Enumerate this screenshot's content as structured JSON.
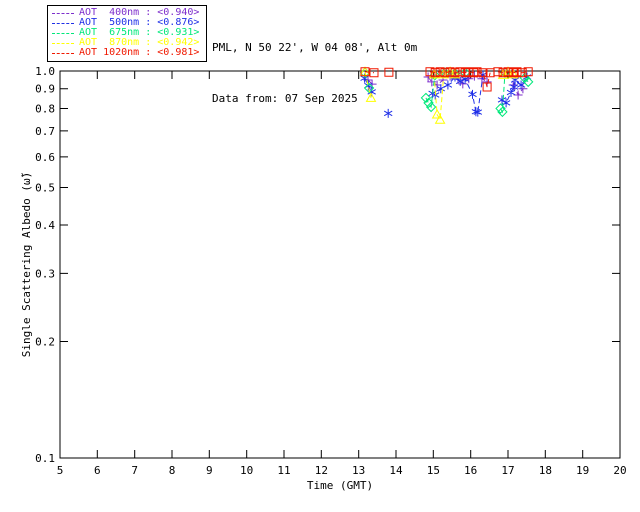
{
  "header": {
    "site_line": "PML, N 50 22', W 04 08', Alt 0m",
    "date_line": "Data from: 07 Sep 2025"
  },
  "chart_data": {
    "type": "line",
    "title": "",
    "xlabel": "Time (GMT)",
    "ylabel": "Single Scattering Albedo (ω̃)",
    "xlim": [
      5,
      20
    ],
    "ylim": [
      0.1,
      1.0
    ],
    "yscale": "log",
    "grid": false,
    "legend_position": "top-left",
    "x_ticks": [
      5,
      6,
      7,
      8,
      9,
      10,
      11,
      12,
      13,
      14,
      15,
      16,
      17,
      18,
      19,
      20
    ],
    "y_ticks": [
      1.0,
      0.9,
      0.8,
      0.7,
      0.6,
      0.5,
      0.4,
      0.3,
      0.2,
      0.1
    ],
    "series": [
      {
        "name": "AOT 400nm",
        "legend_label": "AOT  400nm : <0.940>",
        "mean": "<0.940>",
        "color": "#7D2FCC",
        "marker": "plus",
        "linestyle": "dashed",
        "segments": [
          [
            [
              13.25,
              0.948
            ],
            [
              13.36,
              0.925
            ]
          ],
          [
            [
              14.86,
              0.965
            ],
            [
              14.96,
              0.937
            ],
            [
              15.1,
              0.92
            ],
            [
              15.26,
              0.948
            ],
            [
              15.45,
              0.97
            ],
            [
              15.66,
              0.953
            ],
            [
              15.79,
              0.926
            ],
            [
              15.95,
              0.955
            ],
            [
              16.1,
              0.97
            ],
            [
              16.3,
              0.955
            ],
            [
              16.44,
              0.937
            ]
          ],
          [
            [
              17.14,
              0.92
            ],
            [
              17.27,
              0.867
            ],
            [
              17.4,
              0.9
            ]
          ]
        ]
      },
      {
        "name": "AOT 500nm",
        "legend_label": "AOT  500nm : <0.876>",
        "mean": "<0.876>",
        "color": "#1F2FE8",
        "marker": "asterisk",
        "linestyle": "dashed",
        "segments": [
          [
            [
              13.16,
              0.958
            ],
            [
              13.26,
              0.917
            ],
            [
              13.35,
              0.883
            ]
          ],
          [
            [
              13.79,
              0.777
            ]
          ],
          [
            [
              14.98,
              0.875
            ],
            [
              15.05,
              0.867
            ],
            [
              15.2,
              0.9
            ],
            [
              15.39,
              0.92
            ],
            [
              15.58,
              0.965
            ],
            [
              15.72,
              0.94
            ],
            [
              15.85,
              0.953
            ],
            [
              16.05,
              0.87
            ],
            [
              16.14,
              0.785
            ],
            [
              16.19,
              0.783
            ],
            [
              16.33,
              0.977
            ]
          ],
          [
            [
              16.84,
              0.842
            ],
            [
              16.95,
              0.827
            ],
            [
              17.08,
              0.88
            ],
            [
              17.16,
              0.909
            ],
            [
              17.19,
              0.948
            ],
            [
              17.35,
              0.92
            ],
            [
              17.51,
              0.965
            ]
          ]
        ]
      },
      {
        "name": "AOT 675nm",
        "legend_label": "AOT  675nm : <0.931>",
        "mean": "<0.931>",
        "color": "#00E87A",
        "marker": "diamond",
        "linestyle": "dashed",
        "segments": [
          [
            [
              13.17,
              0.99
            ],
            [
              13.28,
              0.904
            ]
          ],
          [
            [
              14.8,
              0.852
            ],
            [
              14.87,
              0.827
            ],
            [
              14.94,
              0.807
            ],
            [
              15.04,
              0.975
            ],
            [
              15.31,
              0.99
            ],
            [
              15.58,
              0.985
            ],
            [
              15.85,
              0.99
            ]
          ],
          [
            [
              16.8,
              0.8
            ],
            [
              16.85,
              0.784
            ],
            [
              16.92,
              0.99
            ]
          ],
          [
            [
              17.45,
              0.96
            ],
            [
              17.54,
              0.937
            ]
          ]
        ]
      },
      {
        "name": "AOT 870nm",
        "legend_label": "AOT  870nm : <0.942>",
        "mean": "<0.942>",
        "color": "#FFFF00",
        "marker": "triangle",
        "linestyle": "dashed",
        "segments": [
          [
            [
              13.17,
              0.995
            ],
            [
              13.33,
              0.852
            ]
          ],
          [
            [
              15.02,
              0.98
            ],
            [
              15.1,
              0.772
            ],
            [
              15.18,
              0.748
            ],
            [
              15.28,
              0.98
            ],
            [
              15.45,
              0.995
            ],
            [
              15.58,
              0.98
            ]
          ],
          [
            [
              16.87,
              0.977
            ],
            [
              17.0,
              0.995
            ],
            [
              17.14,
              0.98
            ]
          ]
        ]
      },
      {
        "name": "AOT 1020nm",
        "legend_label": "AOT 1020nm : <0.981>",
        "mean": "<0.981>",
        "color": "#F01800",
        "marker": "square",
        "linestyle": "dashed",
        "segments": [
          [
            [
              13.17,
              0.995
            ],
            [
              13.41,
              0.99
            ]
          ],
          [
            [
              13.81,
              0.992
            ]
          ],
          [
            [
              14.91,
              0.995
            ],
            [
              15.05,
              0.99
            ],
            [
              15.18,
              0.995
            ],
            [
              15.31,
              0.99
            ],
            [
              15.45,
              0.995
            ],
            [
              15.58,
              0.99
            ],
            [
              15.71,
              0.995
            ],
            [
              15.85,
              0.99
            ],
            [
              15.95,
              0.995
            ],
            [
              16.08,
              0.99
            ],
            [
              16.17,
              0.995
            ],
            [
              16.33,
              0.99
            ],
            [
              16.44,
              0.909
            ],
            [
              16.52,
              0.99
            ]
          ],
          [
            [
              16.73,
              0.995
            ],
            [
              16.87,
              0.99
            ],
            [
              17.0,
              0.995
            ],
            [
              17.14,
              0.99
            ],
            [
              17.24,
              0.995
            ],
            [
              17.38,
              0.99
            ],
            [
              17.54,
              0.995
            ]
          ]
        ]
      }
    ]
  }
}
